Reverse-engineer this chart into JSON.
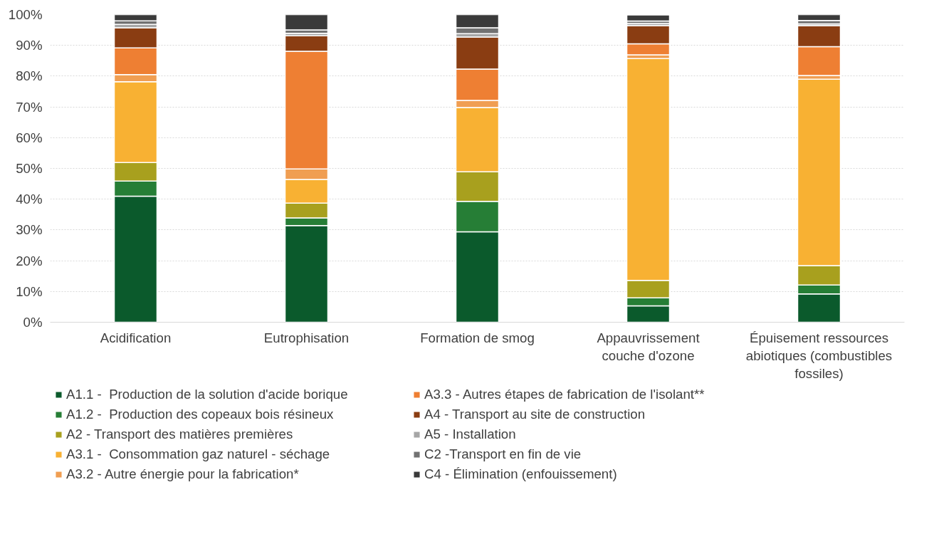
{
  "chart_data": {
    "type": "bar",
    "stacked": true,
    "categories": [
      "Acidification",
      "Eutrophisation",
      "Formation de smog",
      "Appauvrissement\ncouche d'ozone",
      "Épuisement ressources\nabiotiques (combustibles\nfossiles)"
    ],
    "series": [
      {
        "name": "A1.1 -  Production de la solution d'acide borique",
        "color": "#0b5a2c",
        "values": [
          41.0,
          31.4,
          29.4,
          5.3,
          9.2
        ]
      },
      {
        "name": "A1.2 -  Production des copeaux bois résineux",
        "color": "#267e36",
        "values": [
          4.9,
          2.5,
          9.9,
          2.6,
          2.9
        ]
      },
      {
        "name": "A2 - Transport des matières premières",
        "color": "#a8a01e",
        "values": [
          6.0,
          4.8,
          9.6,
          5.7,
          6.3
        ]
      },
      {
        "name": "A3.1 -  Consommation gaz naturel - séchage",
        "color": "#f8b133",
        "values": [
          26.3,
          7.7,
          20.9,
          72.1,
          60.6
        ]
      },
      {
        "name": "A3.2 - Autre énergie pour la fabrication*",
        "color": "#f09e52",
        "values": [
          2.3,
          3.4,
          2.3,
          1.2,
          1.2
        ]
      },
      {
        "name": "A3.3 - Autres étapes de fabrication de l'isolant**",
        "color": "#ee7f33",
        "values": [
          8.7,
          38.3,
          10.2,
          3.6,
          9.4
        ]
      },
      {
        "name": "A4 - Transport au site de construction",
        "color": "#8a3d12",
        "values": [
          6.5,
          5.0,
          10.4,
          5.9,
          6.8
        ]
      },
      {
        "name": "A5 - Installation",
        "color": "#a6a6a6",
        "values": [
          1.1,
          0.8,
          1.1,
          0.7,
          0.6
        ]
      },
      {
        "name": "C2 -Transport en fin de vie",
        "color": "#727272",
        "values": [
          1.2,
          1.1,
          1.9,
          0.8,
          1.1
        ]
      },
      {
        "name": "C4 - Élimination (enfouissement)",
        "color": "#3a3a3a",
        "values": [
          2.0,
          5.0,
          4.3,
          2.0,
          1.9
        ]
      }
    ],
    "ylim": [
      0,
      100
    ],
    "yticks": [
      {
        "value": 0,
        "label": "0%"
      },
      {
        "value": 10,
        "label": "10%"
      },
      {
        "value": 20,
        "label": "20%"
      },
      {
        "value": 30,
        "label": "30%"
      },
      {
        "value": 40,
        "label": "40%"
      },
      {
        "value": 50,
        "label": "50%"
      },
      {
        "value": 60,
        "label": "60%"
      },
      {
        "value": 70,
        "label": "70%"
      },
      {
        "value": 80,
        "label": "80%"
      },
      {
        "value": 90,
        "label": "90%"
      },
      {
        "value": 100,
        "label": "100%"
      }
    ],
    "grid": "y",
    "legend": "bottom"
  }
}
